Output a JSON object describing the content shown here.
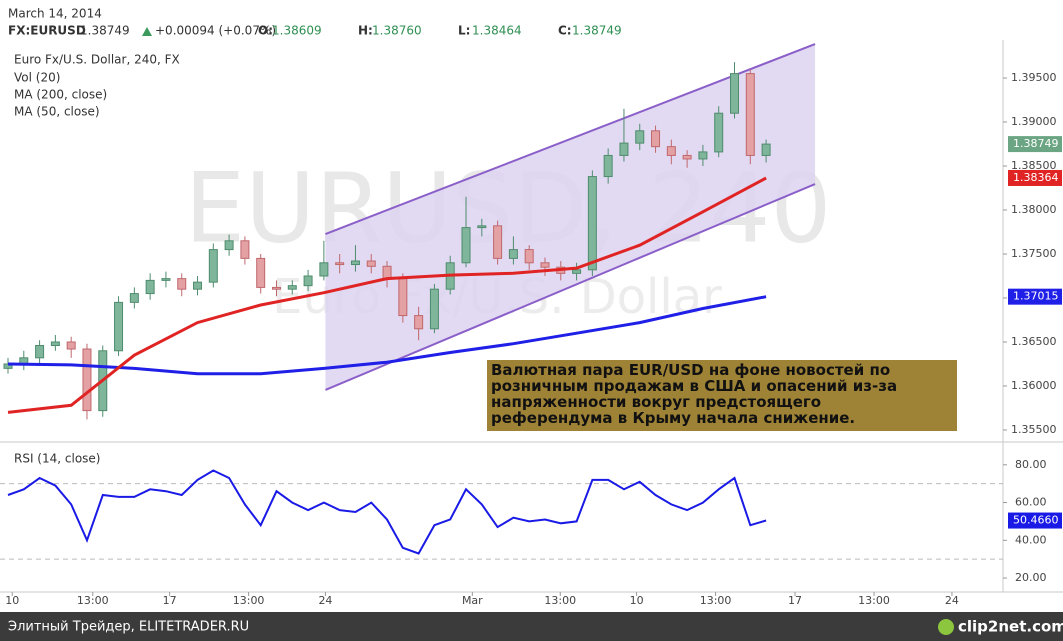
{
  "header": {
    "date": "March 14, 2014",
    "symbol": "FX:EURUSD",
    "price": "1.38749",
    "change": "+0.00094 (+0.07%)",
    "ohlc": [
      {
        "key": "O:",
        "value": "1.38609"
      },
      {
        "key": "H:",
        "value": "1.38760"
      },
      {
        "key": "L:",
        "value": "1.38464"
      },
      {
        "key": "C:",
        "value": "1.38749"
      }
    ]
  },
  "chart_data": {
    "type": "candlestick",
    "title": "Euro Fx/U.S. Dollar, 240, FX",
    "watermark": "EURUSD, 240",
    "watermark_subtitle": "Euro Fx/U.S. Dollar",
    "volume_label": "Vol (20)",
    "x": [
      0,
      3,
      6,
      9,
      12,
      15,
      18,
      21,
      24,
      27,
      30,
      33,
      36,
      39,
      42,
      45,
      48,
      51,
      54,
      57,
      60,
      63,
      66,
      69,
      72,
      75,
      78,
      81,
      84,
      87,
      90,
      93,
      96,
      99,
      102,
      105,
      108,
      111,
      114,
      117,
      120,
      123,
      126,
      129,
      132,
      135,
      138,
      141,
      144
    ],
    "open": [
      1.362,
      1.3625,
      1.3632,
      1.3646,
      1.365,
      1.3642,
      1.3572,
      1.364,
      1.3695,
      1.3705,
      1.372,
      1.3722,
      1.371,
      1.3718,
      1.3755,
      1.3765,
      1.3745,
      1.3712,
      1.371,
      1.3714,
      1.3725,
      1.374,
      1.3738,
      1.3742,
      1.3736,
      1.3722,
      1.368,
      1.3665,
      1.371,
      1.374,
      1.378,
      1.3782,
      1.3745,
      1.3755,
      1.374,
      1.3735,
      1.3728,
      1.3732,
      1.3838,
      1.3862,
      1.3876,
      1.389,
      1.3872,
      1.3862,
      1.3858,
      1.3866,
      1.391,
      1.3955,
      1.3862
    ],
    "high": [
      1.3632,
      1.364,
      1.3652,
      1.3658,
      1.3656,
      1.3648,
      1.3646,
      1.3702,
      1.3712,
      1.3728,
      1.373,
      1.3728,
      1.3725,
      1.3762,
      1.3772,
      1.377,
      1.375,
      1.372,
      1.372,
      1.3732,
      1.3765,
      1.375,
      1.376,
      1.375,
      1.3742,
      1.3728,
      1.369,
      1.3716,
      1.3748,
      1.3815,
      1.379,
      1.3788,
      1.377,
      1.376,
      1.3746,
      1.3742,
      1.374,
      1.3845,
      1.387,
      1.3915,
      1.3898,
      1.3896,
      1.388,
      1.3868,
      1.3874,
      1.3918,
      1.3968,
      1.396,
      1.388
    ],
    "low": [
      1.3614,
      1.3618,
      1.3626,
      1.364,
      1.3632,
      1.3562,
      1.3565,
      1.3634,
      1.3688,
      1.3698,
      1.3712,
      1.3702,
      1.3703,
      1.3712,
      1.3748,
      1.3738,
      1.3705,
      1.3702,
      1.3704,
      1.3708,
      1.372,
      1.3728,
      1.373,
      1.3728,
      1.3712,
      1.3672,
      1.3652,
      1.366,
      1.3704,
      1.3735,
      1.377,
      1.3738,
      1.3738,
      1.3732,
      1.3725,
      1.372,
      1.372,
      1.3725,
      1.383,
      1.3855,
      1.3868,
      1.3865,
      1.3852,
      1.3848,
      1.385,
      1.386,
      1.3904,
      1.3852,
      1.3854
    ],
    "close": [
      1.3625,
      1.3632,
      1.3646,
      1.365,
      1.3642,
      1.3572,
      1.364,
      1.3695,
      1.3705,
      1.372,
      1.3722,
      1.371,
      1.3718,
      1.3755,
      1.3765,
      1.3745,
      1.3712,
      1.371,
      1.3714,
      1.3725,
      1.374,
      1.3738,
      1.3742,
      1.3736,
      1.3722,
      1.368,
      1.3665,
      1.371,
      1.374,
      1.378,
      1.3782,
      1.3745,
      1.3755,
      1.374,
      1.3735,
      1.3728,
      1.3732,
      1.3838,
      1.3862,
      1.3876,
      1.389,
      1.3872,
      1.3862,
      1.3858,
      1.3866,
      1.391,
      1.3955,
      1.3862,
      1.38749
    ],
    "up_color": "#7fb59a",
    "down_color": "#e3a1a4",
    "last_color": "#6ba583",
    "series": [
      {
        "name": "MA (200, close)",
        "color": "#1f1fe8",
        "x": [
          0,
          12,
          24,
          36,
          48,
          60,
          72,
          84,
          96,
          108,
          120,
          132,
          144
        ],
        "values": [
          1.3625,
          1.3624,
          1.362,
          1.3614,
          1.3614,
          1.362,
          1.3627,
          1.3638,
          1.3648,
          1.366,
          1.3672,
          1.3688,
          1.37015
        ]
      },
      {
        "name": "MA (50, close)",
        "color": "#e02424",
        "x": [
          0,
          12,
          24,
          36,
          48,
          60,
          72,
          84,
          96,
          108,
          120,
          132,
          144
        ],
        "values": [
          1.357,
          1.3578,
          1.3635,
          1.3672,
          1.3692,
          1.3706,
          1.3722,
          1.3726,
          1.3728,
          1.3734,
          1.376,
          1.3798,
          1.38364
        ]
      }
    ],
    "channel": {
      "x": [
        60.3,
        153.3
      ],
      "upper": [
        1.37727,
        1.39886
      ],
      "lower": [
        1.35955,
        1.38295
      ],
      "color": "#8b5fc9",
      "fill": "#ddd3f0"
    },
    "annotation": {
      "lines": [
        "Валютная пара EUR/USD на фоне новостей по",
        "розничным продажам в США и опасений из-за",
        "напряженности вокруг предстоящего",
        "референдума в Крыму начала снижение."
      ],
      "background": "#9e8236"
    },
    "xlim": [
      0,
      189
    ],
    "xticks": [
      {
        "value": 0.8,
        "label": "10"
      },
      {
        "value": 16.1,
        "label": "13:00"
      },
      {
        "value": 30.7,
        "label": "17"
      },
      {
        "value": 45.7,
        "label": "13:00"
      },
      {
        "value": 60.3,
        "label": "24"
      },
      {
        "value": 88.2,
        "label": "Mar"
      },
      {
        "value": 104.9,
        "label": "13:00"
      },
      {
        "value": 119.4,
        "label": "10"
      },
      {
        "value": 134.4,
        "label": "13:00"
      },
      {
        "value": 149.5,
        "label": "17"
      },
      {
        "value": 164.5,
        "label": "13:00"
      },
      {
        "value": 179.3,
        "label": "24"
      }
    ],
    "ylim": [
      1.35386,
      1.39932
    ],
    "yticks": [
      {
        "value": 1.355,
        "label": "1.35500"
      },
      {
        "value": 1.36,
        "label": "1.36000"
      },
      {
        "value": 1.365,
        "label": "1.36500"
      },
      {
        "value": 1.37,
        "label": "1.37000"
      },
      {
        "value": 1.375,
        "label": "1.37500"
      },
      {
        "value": 1.38,
        "label": "1.38000"
      },
      {
        "value": 1.385,
        "label": "1.38500"
      },
      {
        "value": 1.39,
        "label": "1.39000"
      },
      {
        "value": 1.395,
        "label": "1.39500"
      }
    ],
    "rsi": {
      "name": "RSI (14, close)",
      "color": "#1a1ae6",
      "x": [
        0,
        3,
        6,
        9,
        12,
        15,
        18,
        21,
        24,
        27,
        30,
        33,
        36,
        39,
        42,
        45,
        48,
        51,
        54,
        57,
        60,
        63,
        66,
        69,
        72,
        75,
        78,
        81,
        84,
        87,
        90,
        93,
        96,
        99,
        102,
        105,
        108,
        111,
        114,
        117,
        120,
        123,
        126,
        129,
        132,
        135,
        138,
        141,
        144
      ],
      "values": [
        64,
        67,
        73,
        69,
        59,
        40,
        64,
        63,
        63,
        67,
        66,
        64,
        72,
        77,
        73,
        59,
        48,
        66,
        60,
        56,
        60,
        56,
        55,
        60,
        51,
        36,
        33,
        48,
        51,
        67,
        59,
        47,
        52,
        50,
        51,
        49,
        50,
        72,
        72,
        67,
        71,
        64,
        59,
        56,
        60,
        67,
        73,
        48,
        50.466
      ],
      "last_label": "50.4660",
      "levels": [
        70,
        30
      ],
      "ylim": [
        12.6,
        90.5
      ],
      "yticks": [
        {
          "value": 20,
          "label": "20.00"
        },
        {
          "value": 40,
          "label": "40.00"
        },
        {
          "value": 60,
          "label": "60.00"
        },
        {
          "value": 80,
          "label": "80.00"
        }
      ]
    }
  },
  "footer": {
    "source": "Элитный Трейдер, ELITETRADER.RU",
    "logo": "clip2net.com"
  }
}
